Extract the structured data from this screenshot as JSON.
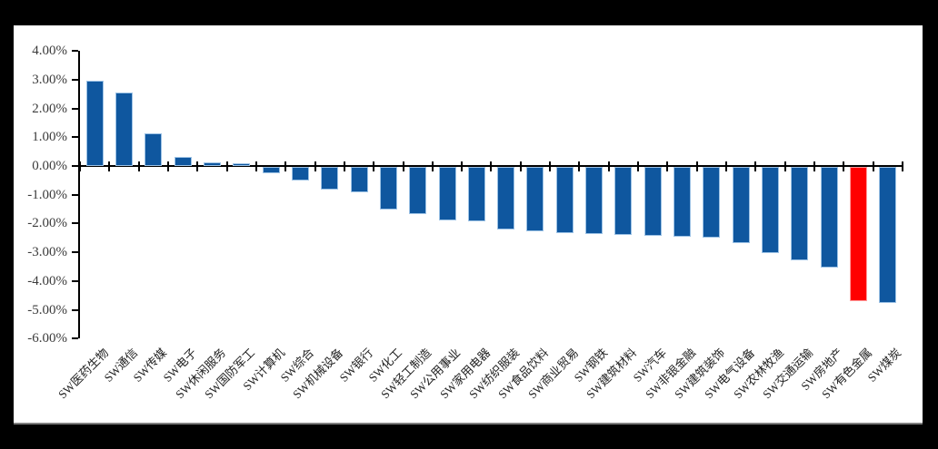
{
  "frame": {
    "background_color": "#000000",
    "card_background_color": "#ffffff",
    "card_bottom_border_color": "#7f7f7f"
  },
  "chart_data": {
    "type": "bar",
    "title": "",
    "xlabel": "",
    "ylabel": "",
    "grid": false,
    "legend": null,
    "ylim": [
      -6,
      4
    ],
    "ytick_step": 1,
    "ytick_labels": [
      "4.00%",
      "3.00%",
      "2.00%",
      "1.00%",
      "0.00%",
      "-1.00%",
      "-2.00%",
      "-3.00%",
      "-4.00%",
      "-5.00%",
      "-6.00%"
    ],
    "categories": [
      "SW医药生物",
      "SW通信",
      "SW传媒",
      "SW电子",
      "SW休闲服务",
      "SW国防军工",
      "SW计算机",
      "SW综合",
      "SW机械设备",
      "SW银行",
      "SW化工",
      "SW轻工制造",
      "SW公用事业",
      "SW家用电器",
      "SW纺织服装",
      "SW食品饮料",
      "SW商业贸易",
      "SW钢铁",
      "SW建筑材料",
      "SW汽车",
      "SW非银金融",
      "SW建筑装饰",
      "SW电气设备",
      "SW农林牧渔",
      "SW交通运输",
      "SW房地产",
      "SW有色金属",
      "SW煤炭"
    ],
    "values": [
      2.96,
      2.56,
      1.13,
      0.3,
      0.14,
      0.09,
      -0.23,
      -0.48,
      -0.8,
      -0.88,
      -1.48,
      -1.64,
      -1.85,
      -1.9,
      -2.18,
      -2.24,
      -2.3,
      -2.33,
      -2.37,
      -2.39,
      -2.42,
      -2.45,
      -2.66,
      -3.0,
      -3.26,
      -3.49,
      -4.67,
      -4.73
    ],
    "highlight_index": 26,
    "colors": {
      "bar_default": "#0F579F",
      "bar_default_border": "#9CC2E5",
      "bar_highlight": "#FF0000",
      "bar_highlight_border": "#FF9D9D",
      "axis": "#000000",
      "ytick_label": "#3b3b3b",
      "category_label": "#222222"
    }
  }
}
